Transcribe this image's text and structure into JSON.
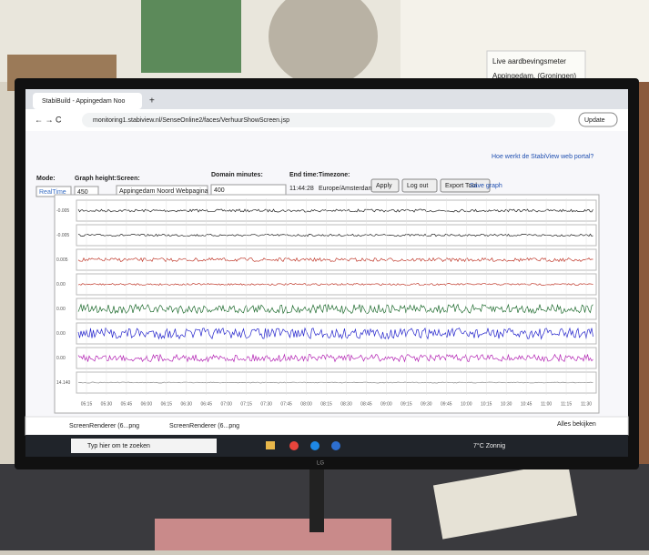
{
  "note": {
    "lines": [
      "Live aardbevingsmeter",
      "Appingedam. (Groningen)"
    ]
  },
  "browser": {
    "tab_title": "StabiBuild - Appingedam Noo",
    "url": "monitoring1.stabiview.nl/SenseOnline2/faces/VerhuurShowScreen.jsp",
    "update_button": "Update"
  },
  "page": {
    "help_link": "Hoe werkt de StabiView web portal?",
    "labels": [
      "Mode:",
      "Graph height:",
      "Screen:",
      "Domain minutes:",
      "End time:",
      "Timezone:"
    ],
    "mode": "RealTime",
    "graph_height": "450",
    "screen": "Appingedam Noord Webpagina",
    "domain_minutes": "400",
    "end_time": "11:44:28",
    "timezone": "Europe/Amsterdam",
    "buttons": [
      "Apply",
      "Log out",
      "Export Tool"
    ],
    "save_link": "Save graph"
  },
  "graphs": {
    "y_labels": [
      "-0.005",
      "-0.005",
      "0.005",
      "0.00",
      "0.00",
      "0.00",
      "0.00",
      "14.140"
    ],
    "x_ticks": [
      "05:15",
      "05:30",
      "05:45",
      "06:00",
      "06:15",
      "06:30",
      "06:45",
      "07:00",
      "07:15",
      "07:30",
      "07:45",
      "08:00",
      "08:15",
      "08:30",
      "08:45",
      "09:00",
      "09:15",
      "09:30",
      "09:45",
      "10:00",
      "10:15",
      "10:30",
      "10:45",
      "11:00",
      "11:15",
      "11:30"
    ]
  },
  "downloads": {
    "files": [
      "ScreenRenderer (6...png",
      "ScreenRenderer (6...png"
    ],
    "show_all": "Alles bekijken"
  },
  "taskbar": {
    "search": "Typ hier om te zoeken",
    "weather": "7°C Zonnig"
  }
}
